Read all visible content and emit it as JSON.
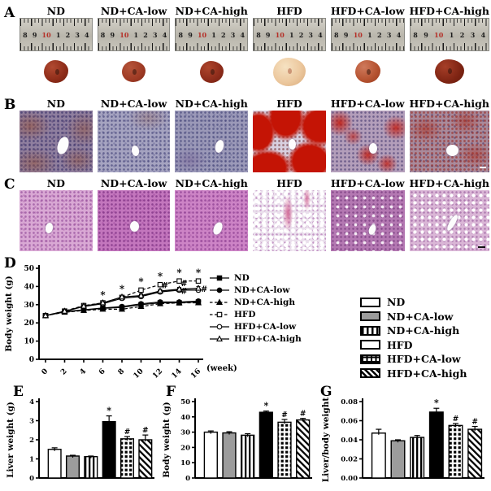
{
  "panels": {
    "a": "A",
    "b": "B",
    "c": "C",
    "d": "D",
    "e": "E",
    "f": "F",
    "g": "G"
  },
  "groups": [
    "ND",
    "ND+CA-low",
    "ND+CA-high",
    "HFD",
    "HFD+CA-low",
    "HFD+CA-high"
  ],
  "ruler": {
    "numbers": [
      "8",
      "9",
      "10",
      "1",
      "2",
      "3",
      "4"
    ],
    "red_number": "10"
  },
  "liver_colors": {
    "nd": "#8c2b18",
    "hfd": "#ecc89e",
    "hfd_ca_low": "#b4512f",
    "hfd_ca_high": "#7e2413"
  },
  "histology": {
    "b_stain": {
      "nd_base": "#8f7f9f",
      "hfd_red": "#c41405",
      "hfd_base": "#d8cfdf"
    },
    "c_stain": {
      "base_pink": "#cd84c6",
      "hfd_pale": "#eadfec"
    }
  },
  "chart_data": [
    {
      "id": "D",
      "type": "line",
      "ylabel": "Body weight (g)",
      "xlabel": "(week)",
      "x": [
        0,
        2,
        4,
        6,
        8,
        10,
        12,
        14,
        16
      ],
      "ylim": [
        0,
        50
      ],
      "yticks": [
        0,
        10,
        20,
        30,
        40,
        50
      ],
      "legend_position": "right",
      "grid": false,
      "series": [
        {
          "name": "ND",
          "marker": "square",
          "filled": true,
          "dash": "solid",
          "err": 0,
          "values": [
            24,
            26,
            27,
            28,
            28.5,
            30,
            31,
            31,
            31.5
          ]
        },
        {
          "name": "ND+CA-low",
          "marker": "circle",
          "filled": true,
          "dash": "solid",
          "err": 0,
          "values": [
            24,
            26.2,
            27.2,
            28.2,
            29,
            30.5,
            31.5,
            31.5,
            32
          ]
        },
        {
          "name": "ND+CA-high",
          "marker": "triangle",
          "filled": true,
          "dash": "dashed",
          "err": 1,
          "values": [
            24,
            25.8,
            26.8,
            27.5,
            27.5,
            29,
            30.5,
            31,
            31
          ]
        },
        {
          "name": "HFD",
          "marker": "square",
          "filled": false,
          "dash": "dashed",
          "err": 1,
          "values": [
            24,
            26.5,
            29.5,
            31,
            34,
            38,
            41,
            43,
            43
          ]
        },
        {
          "name": "HFD+CA-low",
          "marker": "circle",
          "filled": false,
          "dash": "solid",
          "err": 1,
          "values": [
            24,
            26.3,
            29,
            30.5,
            33.5,
            34.5,
            37,
            38,
            38
          ]
        },
        {
          "name": "HFD+CA-high",
          "marker": "triangle",
          "filled": false,
          "dash": "solid",
          "err": 1,
          "values": [
            24,
            26.4,
            29.2,
            31,
            34.2,
            35,
            37.5,
            38.5,
            39
          ]
        }
      ],
      "annotations": [
        {
          "x": 6,
          "y": 33.5,
          "text": "*"
        },
        {
          "x": 8,
          "y": 36.8,
          "text": "*"
        },
        {
          "x": 10,
          "y": 40.8,
          "text": "*"
        },
        {
          "x": 12,
          "y": 43.8,
          "text": "*"
        },
        {
          "x": 14,
          "y": 45.8,
          "text": "*"
        },
        {
          "x": 16,
          "y": 45.8,
          "text": "*"
        },
        {
          "x": 12.5,
          "y": 39,
          "text": "#"
        },
        {
          "x": 14.5,
          "y": 40.2,
          "text": "#"
        },
        {
          "x": 14.5,
          "y": 36,
          "text": "#"
        },
        {
          "x": 16.6,
          "y": 37,
          "text": "#"
        }
      ]
    },
    {
      "id": "E",
      "type": "bar",
      "ylabel": "Liver weight (g)",
      "ylim": [
        0,
        4
      ],
      "yticks": [
        0,
        1,
        2,
        3,
        4
      ],
      "categories": [
        "ND",
        "ND+CA-low",
        "ND+CA-high",
        "HFD",
        "HFD+CA-low",
        "HFD+CA-high"
      ],
      "values": [
        1.5,
        1.15,
        1.12,
        2.95,
        2.05,
        2.0
      ],
      "errors": [
        0.08,
        0.04,
        0.03,
        0.3,
        0.12,
        0.25
      ],
      "sig": [
        "",
        "",
        "",
        "*",
        "#",
        "#"
      ]
    },
    {
      "id": "F",
      "type": "bar",
      "ylabel": "Body weight (g)",
      "ylim": [
        0,
        50
      ],
      "yticks": [
        0,
        10,
        20,
        30,
        40,
        50
      ],
      "categories": [
        "ND",
        "ND+CA-low",
        "ND+CA-high",
        "HFD",
        "HFD+CA-low",
        "HFD+CA-high"
      ],
      "values": [
        30,
        29.5,
        28,
        43,
        36.5,
        38
      ],
      "errors": [
        0.8,
        0.8,
        1,
        0.8,
        1.8,
        1
      ],
      "sig": [
        "",
        "",
        "",
        "*",
        "#",
        "#"
      ]
    },
    {
      "id": "G",
      "type": "bar",
      "ylabel": "Liver/body weight",
      "ylim": [
        0,
        0.08
      ],
      "yticks": [
        0,
        0.02,
        0.04,
        0.06,
        0.08
      ],
      "categories": [
        "ND",
        "ND+CA-low",
        "ND+CA-high",
        "HFD",
        "HFD+CA-low",
        "HFD+CA-high"
      ],
      "values": [
        0.047,
        0.039,
        0.0425,
        0.069,
        0.055,
        0.051
      ],
      "errors": [
        0.004,
        0.001,
        0.002,
        0.004,
        0.002,
        0.003
      ],
      "sig": [
        "",
        "",
        "",
        "*",
        "#",
        "#"
      ]
    }
  ],
  "bar_legend": [
    {
      "label": "ND",
      "pattern": "white"
    },
    {
      "label": "ND+CA-low",
      "pattern": "gray"
    },
    {
      "label": "ND+CA-high",
      "pattern": "vstripe"
    },
    {
      "label": "HFD",
      "pattern": "black"
    },
    {
      "label": "HFD+CA-low",
      "pattern": "grid"
    },
    {
      "label": "HFD+CA-high",
      "pattern": "diag"
    }
  ]
}
